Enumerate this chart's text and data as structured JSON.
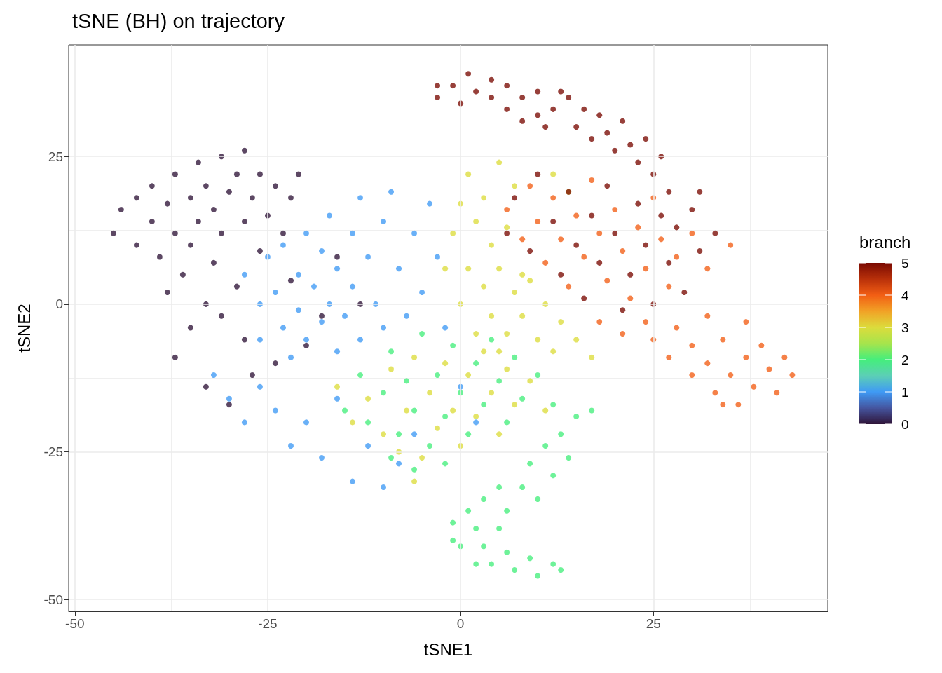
{
  "chart_data": {
    "type": "scatter",
    "title": "tSNE (BH) on trajectory",
    "xlabel": "tSNE1",
    "ylabel": "tSNE2",
    "clabel": "branch",
    "xlim": [
      -50.8,
      47.6
    ],
    "ylim": [
      -52,
      43.9
    ],
    "xticks": [
      -50,
      {
        "value": -37.5,
        "label": null
      },
      -25,
      {
        "value": -12.5,
        "label": null
      },
      0,
      {
        "value": 12.5,
        "label": null
      },
      25,
      {
        "value": 37.5,
        "label": null
      }
    ],
    "yticks": [
      -50,
      {
        "value": -37.5,
        "label": null
      },
      -25,
      {
        "value": -12.5,
        "label": null
      },
      0,
      {
        "value": 12.5,
        "label": null
      },
      25,
      {
        "value": 37.5,
        "label": null
      }
    ],
    "grid": true,
    "marker": "circle",
    "clim": [
      0,
      5
    ],
    "cticks": [
      0,
      1,
      2,
      3,
      4,
      5
    ],
    "x": [
      -45,
      -44,
      -42,
      -42,
      -40,
      -40,
      -39,
      -38,
      -37,
      -37,
      -36,
      -35,
      -35,
      -34,
      -34,
      -33,
      -32,
      -32,
      -31,
      -31,
      -30,
      -29,
      -29,
      -28,
      -28,
      -27,
      -26,
      -26,
      -25,
      -24,
      -23,
      -22,
      -21,
      -33,
      -38,
      -35,
      -31,
      -37,
      -33,
      -30,
      -28,
      -24,
      -20,
      -16,
      -13,
      -22,
      -18,
      -27,
      -28,
      -26,
      -26,
      -25,
      -24,
      -23,
      -23,
      -22,
      -21,
      -21,
      -20,
      -20,
      -19,
      -18,
      -18,
      -17,
      -17,
      -16,
      -16,
      -15,
      -14,
      -14,
      -13,
      -13,
      -12,
      -11,
      -10,
      -10,
      -9,
      -8,
      -7,
      -6,
      -5,
      -4,
      -3,
      -2,
      -32,
      -30,
      -28,
      -26,
      -24,
      -22,
      -20,
      -18,
      -16,
      -14,
      -12,
      -10,
      -8,
      -6,
      0,
      2,
      -15,
      -13,
      -12,
      -10,
      -9,
      -8,
      -7,
      -6,
      -5,
      -4,
      -3,
      -2,
      -1,
      0,
      1,
      2,
      3,
      4,
      5,
      6,
      7,
      8,
      10,
      -9,
      -6,
      -2,
      12,
      15,
      17,
      13,
      11,
      14,
      12,
      9,
      8,
      10,
      5,
      6,
      3,
      1,
      2,
      -1,
      0,
      3,
      4,
      6,
      7,
      9,
      10,
      12,
      13,
      2,
      5,
      -1,
      1,
      3,
      5,
      7,
      0,
      12,
      14,
      2,
      4,
      6,
      8,
      5,
      1,
      3,
      5,
      7,
      9,
      11,
      13,
      4,
      6,
      8,
      10,
      12,
      15,
      17,
      2,
      0,
      -2,
      -1,
      -16,
      -14,
      -12,
      -10,
      -9,
      -7,
      -6,
      -5,
      -4,
      -3,
      -2,
      -1,
      0,
      1,
      2,
      3,
      4,
      5,
      6,
      7,
      9,
      11,
      -8,
      -6,
      6,
      8,
      9,
      10,
      11,
      12,
      13,
      14,
      15,
      16,
      17,
      18,
      19,
      20,
      21,
      22,
      23,
      24,
      25,
      26,
      27,
      28,
      30,
      32,
      35,
      18,
      21,
      24,
      25,
      27,
      28,
      30,
      30,
      32,
      32,
      33,
      34,
      35,
      36,
      37,
      37,
      38,
      39,
      40,
      41,
      42,
      43,
      34,
      -3,
      -3,
      -1,
      0,
      1,
      2,
      4,
      4,
      6,
      6,
      8,
      8,
      10,
      10,
      12,
      13,
      14,
      15,
      16,
      17,
      18,
      19,
      20,
      21,
      22,
      23,
      24,
      25,
      27,
      26,
      11,
      6,
      7,
      9,
      10,
      12,
      13,
      14,
      15,
      16,
      17,
      18,
      19,
      20,
      21,
      22,
      23,
      24,
      25,
      26,
      27,
      28,
      29,
      31,
      33,
      30,
      31
    ],
    "values": [
      12,
      16,
      10,
      18,
      14,
      20,
      8,
      17,
      22,
      12,
      5,
      18,
      10,
      24,
      14,
      20,
      7,
      16,
      25,
      12,
      19,
      22,
      3,
      14,
      26,
      18,
      9,
      22,
      15,
      20,
      12,
      18,
      22,
      0,
      2,
      -4,
      -2,
      -9,
      -14,
      -17,
      -6,
      -10,
      -7,
      8,
      0,
      4,
      -2,
      -12,
      5,
      0,
      -6,
      8,
      2,
      -4,
      10,
      -9,
      5,
      -1,
      12,
      -6,
      3,
      9,
      -3,
      15,
      0,
      6,
      -8,
      -2,
      12,
      3,
      18,
      -6,
      8,
      0,
      14,
      -4,
      19,
      6,
      -2,
      12,
      2,
      17,
      8,
      -4,
      -12,
      -16,
      -20,
      -14,
      -18,
      -24,
      -20,
      -26,
      -16,
      -30,
      -24,
      -31,
      -27,
      -22,
      -14,
      -20,
      -18,
      -12,
      -20,
      -15,
      -8,
      -22,
      -13,
      -18,
      -5,
      -24,
      -12,
      -19,
      -7,
      -15,
      -22,
      -10,
      -17,
      -6,
      -13,
      -20,
      -9,
      -16,
      -12,
      -26,
      -28,
      -27,
      -17,
      -19,
      -18,
      -22,
      -24,
      -26,
      -29,
      -27,
      -31,
      -33,
      -31,
      -35,
      -33,
      -35,
      -38,
      -37,
      -41,
      -41,
      -44,
      -42,
      -45,
      -43,
      -46,
      -44,
      -45,
      -44,
      -38,
      -40,
      22,
      18,
      24,
      20,
      17,
      22,
      19,
      14,
      10,
      13,
      5,
      -8,
      6,
      3,
      6,
      2,
      4,
      0,
      -3,
      -2,
      -5,
      -2,
      -6,
      -8,
      -6,
      -9,
      -5,
      0,
      6,
      12,
      -14,
      -20,
      -16,
      -22,
      -11,
      -18,
      -9,
      -26,
      -15,
      -21,
      -10,
      -18,
      -24,
      -12,
      -19,
      -8,
      -15,
      -22,
      -11,
      -17,
      -13,
      -18,
      -25,
      -30,
      16,
      11,
      20,
      14,
      7,
      18,
      11,
      3,
      15,
      8,
      21,
      12,
      4,
      16,
      9,
      1,
      13,
      6,
      18,
      11,
      3,
      8,
      12,
      6,
      10,
      -3,
      -5,
      -3,
      -6,
      -9,
      -4,
      -7,
      -12,
      -2,
      -10,
      -15,
      -6,
      -12,
      -17,
      -3,
      -9,
      -14,
      -7,
      -11,
      -15,
      -9,
      -12,
      -17,
      35,
      37,
      37,
      34,
      39,
      36,
      35,
      38,
      37,
      33,
      35,
      31,
      36,
      32,
      33,
      36,
      35,
      30,
      33,
      28,
      32,
      29,
      26,
      31,
      27,
      24,
      28,
      22,
      19,
      25,
      30,
      12,
      18,
      9,
      22,
      14,
      5,
      19,
      10,
      1,
      15,
      7,
      20,
      12,
      -1,
      5,
      17,
      10,
      0,
      15,
      7,
      13,
      2,
      9,
      12,
      16,
      19
    ],
    "cvalues": [
      0,
      0,
      0,
      0,
      0,
      0,
      0,
      0,
      0,
      0,
      0,
      0,
      0,
      0,
      0,
      0,
      0,
      0,
      0,
      0,
      0,
      0,
      0,
      0,
      0,
      0,
      0,
      0,
      0,
      0,
      0,
      0,
      0,
      0,
      0,
      0,
      0,
      0,
      0,
      0,
      0,
      0,
      0,
      0,
      0,
      0,
      0,
      0,
      1,
      1,
      1,
      1,
      1,
      1,
      1,
      1,
      1,
      1,
      1,
      1,
      1,
      1,
      1,
      1,
      1,
      1,
      1,
      1,
      1,
      1,
      1,
      1,
      1,
      1,
      1,
      1,
      1,
      1,
      1,
      1,
      1,
      1,
      1,
      1,
      1,
      1,
      1,
      1,
      1,
      1,
      1,
      1,
      1,
      1,
      1,
      1,
      1,
      1,
      1,
      1,
      2,
      2,
      2,
      2,
      2,
      2,
      2,
      2,
      2,
      2,
      2,
      2,
      2,
      2,
      2,
      2,
      2,
      2,
      2,
      2,
      2,
      2,
      2,
      2,
      2,
      2,
      2,
      2,
      2,
      2,
      2,
      2,
      2,
      2,
      2,
      2,
      2,
      2,
      2,
      2,
      2,
      2,
      2,
      2,
      2,
      2,
      2,
      2,
      2,
      2,
      2,
      2,
      2,
      2,
      3,
      3,
      3,
      3,
      3,
      3,
      3,
      3,
      3,
      3,
      3,
      3,
      3,
      3,
      3,
      3,
      3,
      3,
      3,
      3,
      3,
      3,
      3,
      3,
      3,
      3,
      3,
      3,
      3,
      3,
      3,
      3,
      3,
      3,
      3,
      3,
      3,
      3,
      3,
      3,
      3,
      3,
      3,
      3,
      3,
      3,
      3,
      3,
      3,
      3,
      3,
      3,
      3,
      3,
      4,
      4,
      4,
      4,
      4,
      4,
      4,
      4,
      4,
      4,
      4,
      4,
      4,
      4,
      4,
      4,
      4,
      4,
      4,
      4,
      4,
      4,
      4,
      4,
      4,
      4,
      4,
      4,
      4,
      4,
      4,
      4,
      4,
      4,
      4,
      4,
      4,
      4,
      4,
      4,
      4,
      4,
      4,
      4,
      4,
      4,
      4,
      4,
      5,
      5,
      5,
      5,
      5,
      5,
      5,
      5,
      5,
      5,
      5,
      5,
      5,
      5,
      5,
      5,
      5,
      5,
      5,
      5,
      5,
      5,
      5,
      5,
      5,
      5,
      5,
      5,
      5,
      5,
      5,
      5,
      5,
      5,
      5,
      5,
      5,
      5,
      5,
      5,
      5,
      5,
      5,
      5,
      5,
      5,
      5,
      5,
      5,
      5,
      5,
      5,
      5,
      5,
      5,
      5,
      5
    ]
  }
}
